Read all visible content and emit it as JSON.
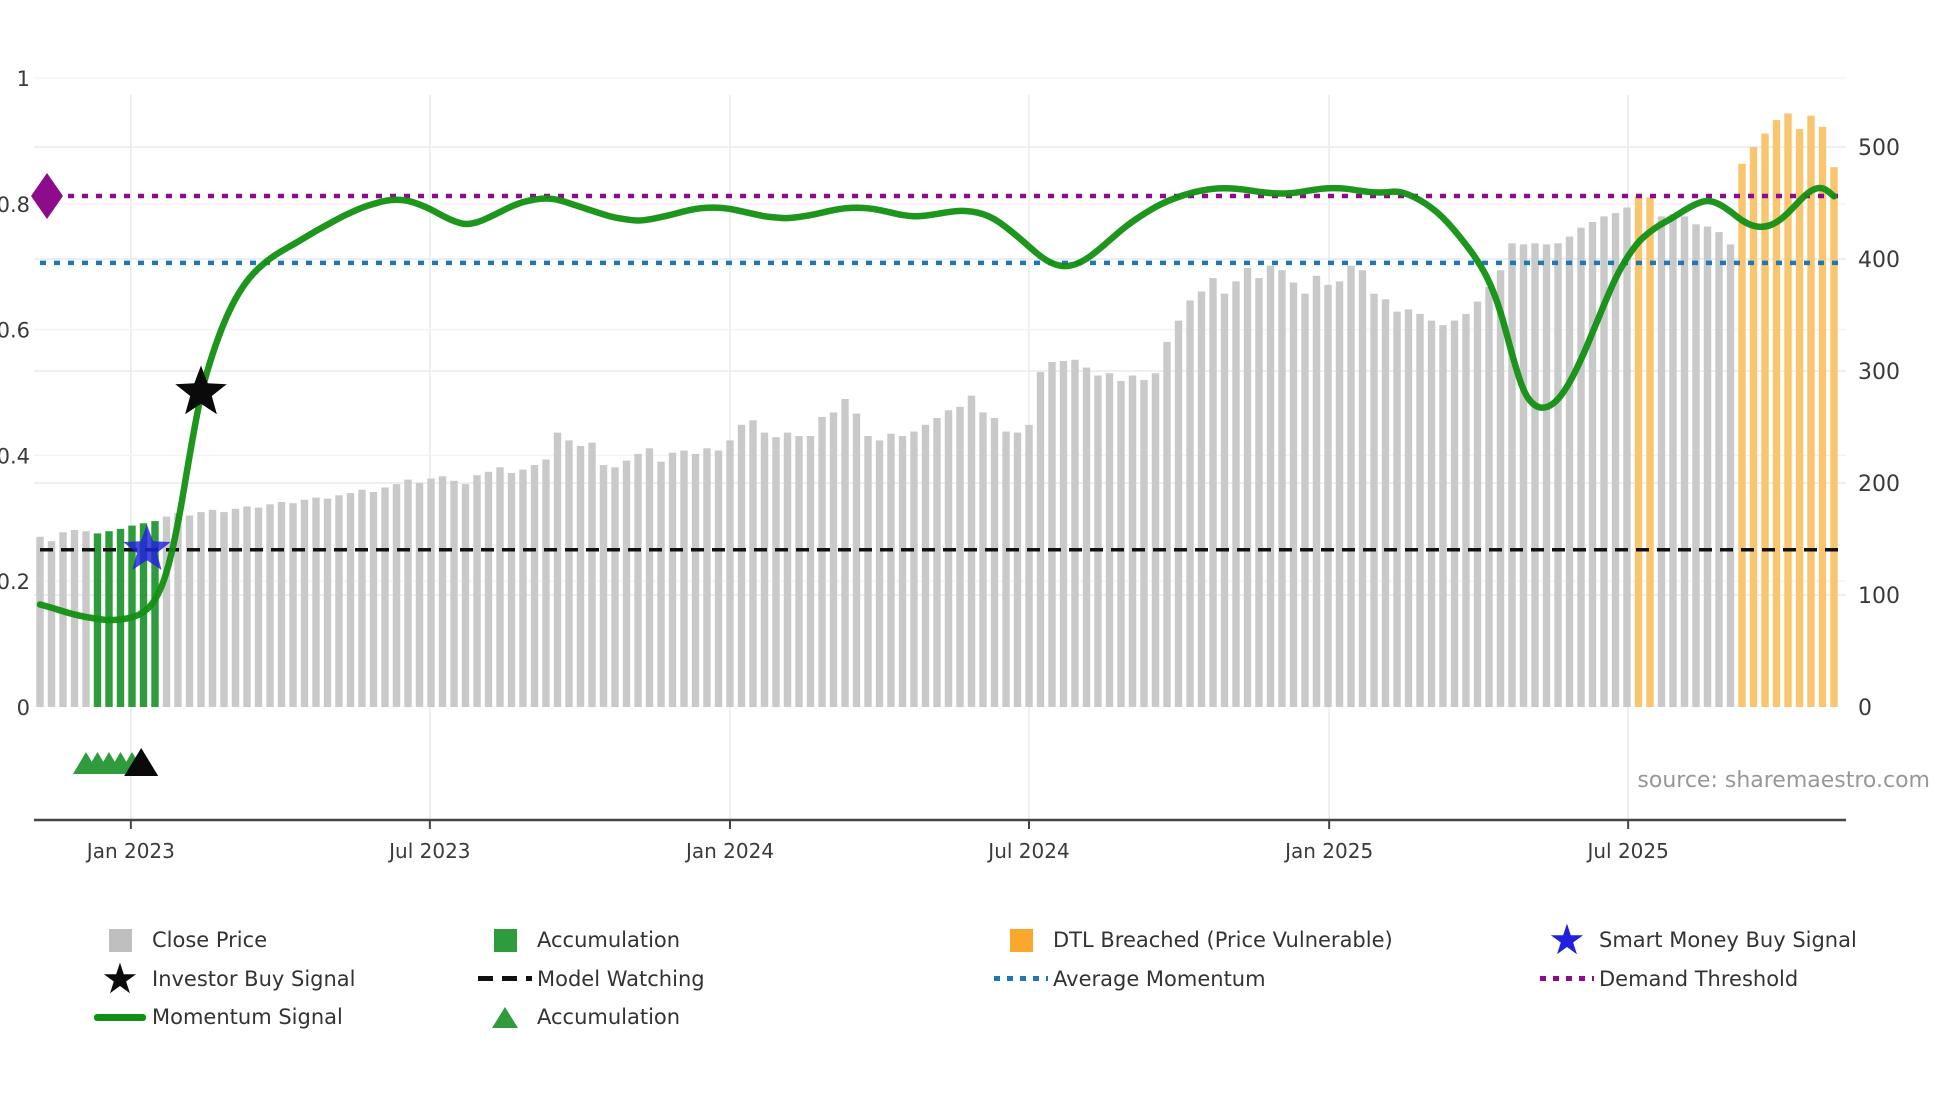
{
  "source_text": "source: sharemaestro.com",
  "colors": {
    "close_price_gray": "#c9c9c9",
    "legend_gray": "#bfbfbf",
    "accumulation_green": "#2e9b3c",
    "momentum_green": "#129012",
    "dtl_orange_bar": "#f9c56e",
    "dtl_orange_legend": "#f9a82d",
    "average_momentum_blue": "#1f77b4",
    "demand_threshold_purple": "#8c0c8c",
    "smart_money_blue": "#2020dd",
    "model_watching_black": "#111111",
    "axis_text": "#3a3a3a",
    "grid_light": "#ececf2"
  },
  "legend": {
    "items": [
      {
        "label": "Close Price",
        "marker": "gray-square"
      },
      {
        "label": "Investor Buy Signal",
        "marker": "black-star"
      },
      {
        "label": "Momentum Signal",
        "marker": "green-line"
      },
      {
        "label": "Accumulation",
        "marker": "green-square"
      },
      {
        "label": "Model Watching",
        "marker": "black-dashed-line"
      },
      {
        "label": "Accumulation",
        "marker": "green-triangle"
      },
      {
        "label": "DTL Breached (Price Vulnerable)",
        "marker": "orange-square"
      },
      {
        "label": "Average Momentum",
        "marker": "blue-dotted-line"
      },
      {
        "label": "Smart Money Buy Signal",
        "marker": "blue-star"
      },
      {
        "label": "Demand Threshold",
        "marker": "purple-dotted-line"
      }
    ]
  },
  "chart_data": {
    "type": "bar",
    "description": "Weekly close-price bars (right axis) with momentum signal line (left axis 0-1), threshold lines and buy-signal markers",
    "x_axis": {
      "tick_labels": [
        "Jan 2023",
        "Jul 2023",
        "Jan 2024",
        "Jul 2024",
        "Jan 2025",
        "Jul 2025"
      ],
      "tick_weeks": [
        7.9,
        33.9,
        60.0,
        86.0,
        112.1,
        138.1
      ]
    },
    "left_axis": {
      "labels": [
        "0",
        "0.2",
        "0.4",
        "0.6",
        "0.8",
        "1"
      ],
      "values": [
        0,
        0.2,
        0.4,
        0.6,
        0.8,
        1
      ],
      "range": [
        0,
        1
      ]
    },
    "right_axis": {
      "labels": [
        "0",
        "100",
        "200",
        "300",
        "400",
        "500"
      ],
      "values": [
        0,
        100,
        200,
        300,
        400,
        500
      ],
      "range": [
        0,
        540
      ]
    },
    "close_price": [
      152,
      148,
      156,
      158,
      157,
      155,
      157,
      159,
      162,
      164,
      166,
      170,
      173,
      171,
      174,
      176,
      174,
      177,
      179,
      178,
      181,
      183,
      182,
      185,
      187,
      186,
      189,
      191,
      194,
      192,
      196,
      199,
      203,
      200,
      204,
      206,
      202,
      199,
      207,
      210,
      214,
      209,
      212,
      216,
      221,
      245,
      238,
      233,
      236,
      216,
      214,
      220,
      226,
      231,
      219,
      227,
      229,
      226,
      231,
      229,
      238,
      252,
      256,
      245,
      241,
      245,
      242,
      242,
      259,
      263,
      275,
      262,
      242,
      238,
      244,
      242,
      246,
      252,
      258,
      265,
      268,
      278,
      263,
      258,
      246,
      245,
      252,
      299,
      308,
      309,
      310,
      303,
      296,
      298,
      291,
      296,
      292,
      298,
      326,
      345,
      363,
      371,
      383,
      369,
      380,
      392,
      383,
      394,
      390,
      379,
      369,
      385,
      377,
      380,
      394,
      390,
      369,
      364,
      353,
      355,
      351,
      345,
      341,
      345,
      351,
      362,
      375,
      390,
      414,
      413,
      414,
      413,
      414,
      420,
      428,
      433,
      438,
      441,
      446,
      456,
      455,
      438,
      440,
      438,
      431,
      429,
      424,
      413,
      485,
      500,
      512,
      524,
      530,
      516,
      528,
      518,
      482
    ],
    "accumulation_weeks": [
      5,
      6,
      7,
      8,
      9,
      10
    ],
    "dtl_breached_weeks": [
      139,
      140,
      148,
      149,
      150,
      151,
      152,
      153,
      154,
      155,
      156
    ],
    "momentum": [
      0.163,
      0.158,
      0.152,
      0.147,
      0.143,
      0.14,
      0.138,
      0.139,
      0.142,
      0.15,
      0.168,
      0.21,
      0.29,
      0.4,
      0.5,
      0.562,
      0.612,
      0.65,
      0.678,
      0.698,
      0.713,
      0.725,
      0.735,
      0.746,
      0.757,
      0.767,
      0.777,
      0.786,
      0.794,
      0.8,
      0.805,
      0.807,
      0.805,
      0.799,
      0.791,
      0.781,
      0.772,
      0.767,
      0.77,
      0.778,
      0.787,
      0.796,
      0.803,
      0.807,
      0.809,
      0.807,
      0.801,
      0.795,
      0.789,
      0.783,
      0.778,
      0.775,
      0.773,
      0.775,
      0.779,
      0.783,
      0.788,
      0.792,
      0.794,
      0.794,
      0.792,
      0.788,
      0.784,
      0.78,
      0.778,
      0.777,
      0.779,
      0.782,
      0.786,
      0.79,
      0.793,
      0.794,
      0.793,
      0.79,
      0.786,
      0.782,
      0.78,
      0.781,
      0.784,
      0.787,
      0.789,
      0.788,
      0.784,
      0.776,
      0.763,
      0.748,
      0.732,
      0.716,
      0.705,
      0.7,
      0.703,
      0.712,
      0.726,
      0.742,
      0.758,
      0.772,
      0.784,
      0.795,
      0.804,
      0.811,
      0.817,
      0.821,
      0.824,
      0.825,
      0.824,
      0.822,
      0.819,
      0.817,
      0.816,
      0.817,
      0.82,
      0.823,
      0.825,
      0.825,
      0.823,
      0.82,
      0.818,
      0.818,
      0.82,
      0.815,
      0.806,
      0.794,
      0.778,
      0.758,
      0.735,
      0.71,
      0.678,
      0.63,
      0.56,
      0.5,
      0.477,
      0.475,
      0.488,
      0.515,
      0.552,
      0.595,
      0.64,
      0.682,
      0.715,
      0.74,
      0.756,
      0.768,
      0.778,
      0.79,
      0.8,
      0.806,
      0.8,
      0.788,
      0.773,
      0.764,
      0.763,
      0.77,
      0.785,
      0.805,
      0.822,
      0.827,
      0.812
    ],
    "hlines": [
      {
        "name": "demand_threshold",
        "value": 0.8125,
        "style": "dotted",
        "color_key": "demand_threshold_purple"
      },
      {
        "name": "average_momentum",
        "value": 0.706,
        "style": "dotted",
        "color_key": "average_momentum_blue"
      },
      {
        "name": "model_watching",
        "value": 0.25,
        "style": "dashed",
        "color_key": "model_watching_black"
      }
    ],
    "markers": {
      "investor_buy_signal": {
        "week": 14,
        "value": 0.5,
        "shape": "star",
        "color_key": "model_watching_black"
      },
      "smart_money_buy_signal": {
        "week": 9.3,
        "value": 0.25,
        "shape": "star",
        "color_key": "smart_money_blue"
      },
      "demand_threshold_diamond": {
        "value": 0.8125,
        "shape": "diamond",
        "color_key": "demand_threshold_purple"
      },
      "accumulation_triangles_weeks": [
        4,
        5,
        6,
        7,
        8
      ],
      "black_triangle_week": 8.8
    }
  }
}
